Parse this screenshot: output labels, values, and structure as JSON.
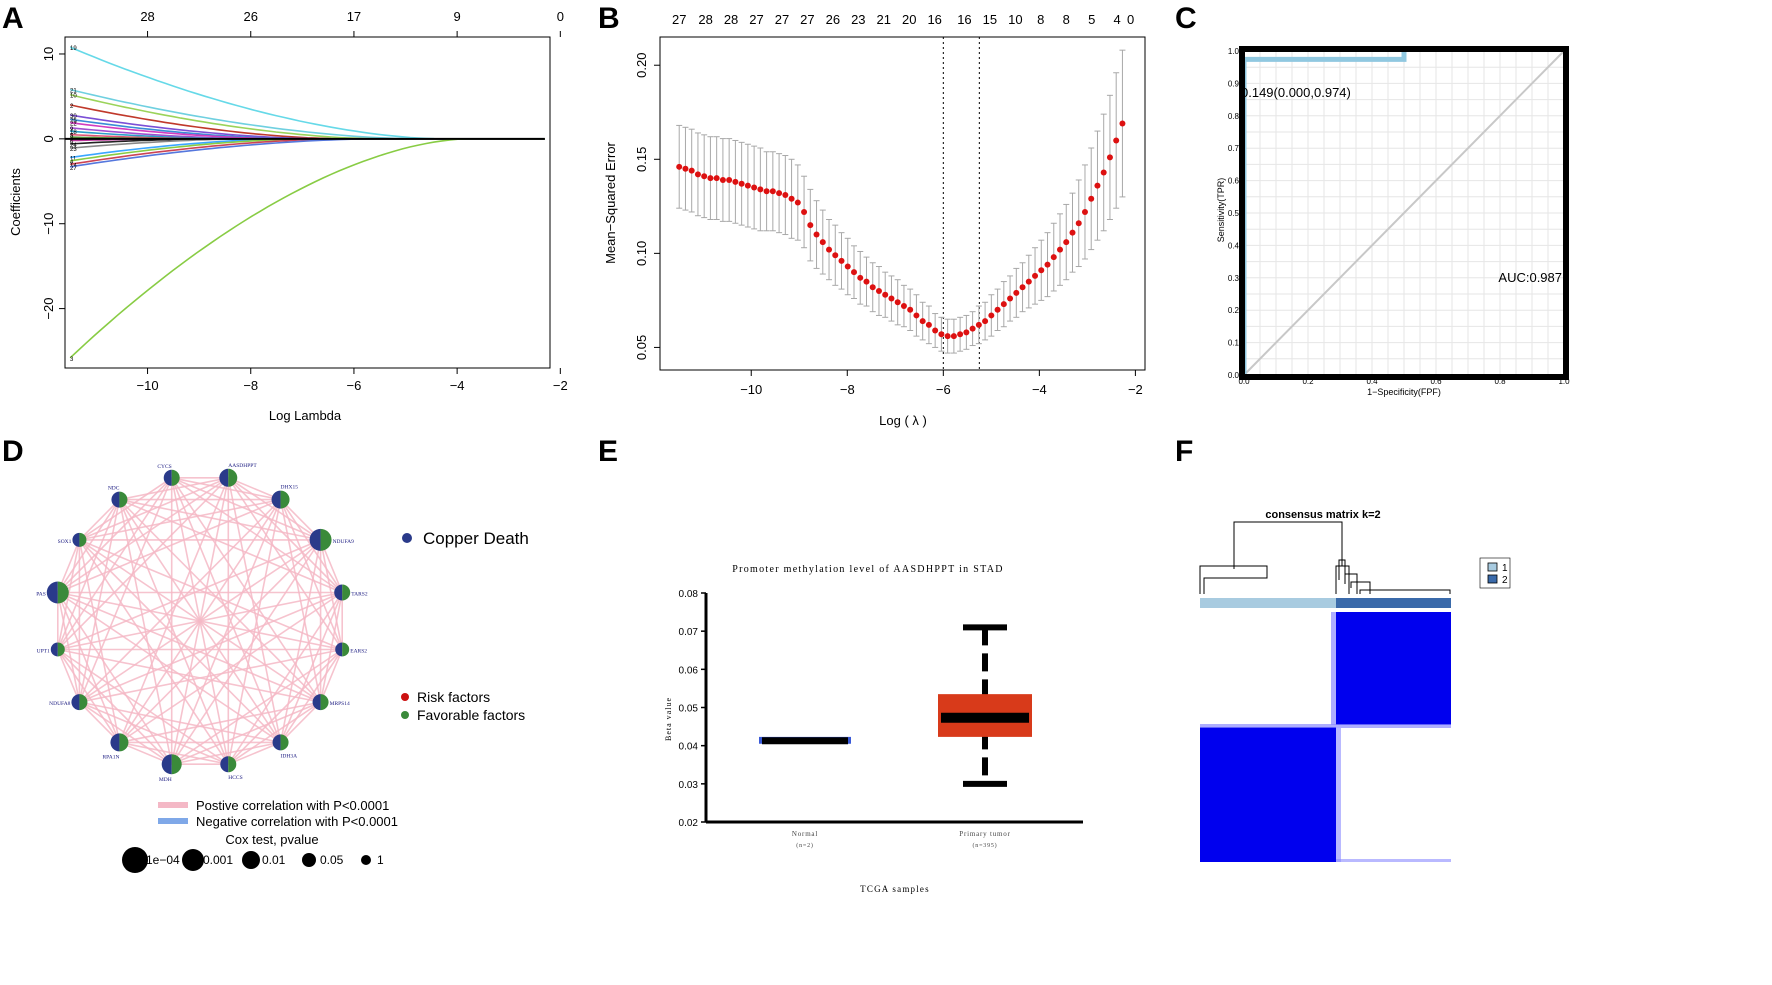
{
  "panel_labels": [
    "A",
    "B",
    "C",
    "D",
    "E",
    "F"
  ],
  "colors": {
    "lasso_lines": [
      "#66d9e8",
      "#6fd0e0",
      "#9bd35a",
      "#c0392b",
      "#7b4fd6",
      "#3a8cd6",
      "#d23cc0",
      "#a050d0",
      "#2aa0c8",
      "#e05575",
      "#5a9a3a",
      "#bb3399",
      "#222222",
      "#888888",
      "#3aa6ff",
      "#88cc44",
      "#cc4455",
      "#5577dd"
    ],
    "cv_point": "#dd1111",
    "cv_errorbar": "#a8a8a8",
    "roc_curve": "#90c8e0",
    "roc_border": "#000000",
    "copper_death": "#2a3a8a",
    "risk": "#cc1111",
    "favorable": "#3a8a3a",
    "edge_positive": "#f4b8c6",
    "edge_negative": "#7fa8e8",
    "box_normal": "#3a5ad8",
    "box_tumor": "#d83a1a",
    "consensus_blue": "#0000ee",
    "consensus_c1": "#a8cbe0",
    "consensus_c2": "#3a6aaa"
  },
  "chart_data": [
    {
      "id": "A",
      "type": "line",
      "title": "",
      "xlabel": "Log Lambda",
      "ylabel": "Coefficients",
      "xlim": [
        -11.6,
        -2.2
      ],
      "ylim": [
        -27,
        12
      ],
      "xticks": [
        -10,
        -8,
        -6,
        -4,
        -2
      ],
      "yticks": [
        -20,
        -10,
        0,
        10
      ],
      "top_axis": {
        "positions": [
          -10,
          -8,
          -6,
          -4,
          -2
        ],
        "labels": [
          "28",
          "26",
          "17",
          "9",
          "0"
        ]
      },
      "line_labels": [
        "19",
        "21",
        "10",
        "2",
        "30",
        "25",
        "22",
        "9",
        "18",
        "5",
        "8",
        "6",
        "24",
        "23",
        "11",
        "4",
        "14",
        "27",
        "3"
      ],
      "series": [
        {
          "name": "19",
          "start": 10.8,
          "end_x": -4.3
        },
        {
          "name": "21",
          "start": 5.8,
          "end_x": -4.8
        },
        {
          "name": "10",
          "start": 5.2,
          "end_x": -5.5
        },
        {
          "name": "2",
          "start": 4.0,
          "end_x": -6.2
        },
        {
          "name": "30",
          "start": 2.8,
          "end_x": -6.6
        },
        {
          "name": "25",
          "start": 2.3,
          "end_x": -7.0
        },
        {
          "name": "22",
          "start": 1.9,
          "end_x": -7.3
        },
        {
          "name": "9",
          "start": 1.3,
          "end_x": -7.8
        },
        {
          "name": "18",
          "start": 0.9,
          "end_x": -8.2
        },
        {
          "name": "5",
          "start": 0.5,
          "end_x": -8.6
        },
        {
          "name": "8",
          "start": 0.2,
          "end_x": -9.0
        },
        {
          "name": "6",
          "start": -0.2,
          "end_x": -9.0
        },
        {
          "name": "24",
          "start": -0.6,
          "end_x": -8.6
        },
        {
          "name": "23",
          "start": -1.1,
          "end_x": -8.0
        },
        {
          "name": "11",
          "start": -2.2,
          "end_x": -7.2
        },
        {
          "name": "4",
          "start": -2.6,
          "end_x": -6.8
        },
        {
          "name": "14",
          "start": -3.0,
          "end_x": -6.2
        },
        {
          "name": "27",
          "start": -3.3,
          "end_x": -5.6
        },
        {
          "name": "3",
          "start": -25.8,
          "end_x": -3.8
        }
      ]
    },
    {
      "id": "B",
      "type": "scatter",
      "title": "",
      "xlabel": "Log ( λ )",
      "ylabel": "Mean−Squared Error",
      "xlim": [
        -11.9,
        -1.8
      ],
      "ylim": [
        0.038,
        0.215
      ],
      "xticks": [
        -10,
        -8,
        -6,
        -4,
        -2
      ],
      "yticks": [
        0.05,
        0.1,
        0.15,
        0.2
      ],
      "top_axis": {
        "positions": [
          -11.5,
          -10.95,
          -10.42,
          -9.89,
          -9.36,
          -8.83,
          -8.3,
          -7.77,
          -7.24,
          -6.71,
          -6.18,
          -5.56,
          -5.03,
          -4.5,
          -3.97,
          -3.44,
          -2.91,
          -2.38
        ],
        "labels": [
          "27",
          "28",
          "28",
          "27",
          "27",
          "27",
          "26",
          "23",
          "21",
          "20",
          "16",
          "16",
          "15",
          "10",
          "8",
          "8",
          "5",
          "4"
        ]
      },
      "top_axis_last": {
        "position": -2.1,
        "label": "0"
      },
      "vlines": [
        -6.0,
        -5.25
      ],
      "x": [
        -11.5,
        -11.37,
        -11.24,
        -11.11,
        -10.98,
        -10.85,
        -10.72,
        -10.59,
        -10.46,
        -10.33,
        -10.2,
        -10.07,
        -9.94,
        -9.81,
        -9.68,
        -9.55,
        -9.42,
        -9.29,
        -9.16,
        -9.03,
        -8.9,
        -8.77,
        -8.64,
        -8.51,
        -8.38,
        -8.25,
        -8.12,
        -7.99,
        -7.86,
        -7.73,
        -7.6,
        -7.47,
        -7.34,
        -7.21,
        -7.08,
        -6.95,
        -6.82,
        -6.69,
        -6.56,
        -6.43,
        -6.3,
        -6.17,
        -6.04,
        -5.91,
        -5.78,
        -5.65,
        -5.52,
        -5.39,
        -5.26,
        -5.13,
        -5.0,
        -4.87,
        -4.74,
        -4.61,
        -4.48,
        -4.35,
        -4.22,
        -4.09,
        -3.96,
        -3.83,
        -3.7,
        -3.57,
        -3.44,
        -3.31,
        -3.18,
        -3.05,
        -2.92,
        -2.79,
        -2.66,
        -2.53,
        -2.4,
        -2.27
      ],
      "y": [
        0.146,
        0.145,
        0.144,
        0.142,
        0.141,
        0.14,
        0.14,
        0.139,
        0.139,
        0.138,
        0.137,
        0.136,
        0.135,
        0.134,
        0.133,
        0.133,
        0.132,
        0.131,
        0.129,
        0.127,
        0.122,
        0.115,
        0.11,
        0.106,
        0.102,
        0.099,
        0.096,
        0.093,
        0.09,
        0.087,
        0.085,
        0.082,
        0.08,
        0.078,
        0.076,
        0.074,
        0.072,
        0.07,
        0.067,
        0.064,
        0.062,
        0.059,
        0.057,
        0.056,
        0.056,
        0.057,
        0.058,
        0.06,
        0.062,
        0.064,
        0.067,
        0.07,
        0.073,
        0.076,
        0.079,
        0.082,
        0.085,
        0.088,
        0.091,
        0.094,
        0.098,
        0.102,
        0.106,
        0.111,
        0.116,
        0.122,
        0.129,
        0.136,
        0.143,
        0.151,
        0.16,
        0.169
      ],
      "err": [
        0.022,
        0.022,
        0.022,
        0.022,
        0.022,
        0.022,
        0.022,
        0.022,
        0.022,
        0.022,
        0.022,
        0.022,
        0.022,
        0.022,
        0.021,
        0.021,
        0.021,
        0.021,
        0.021,
        0.02,
        0.019,
        0.019,
        0.018,
        0.017,
        0.016,
        0.016,
        0.015,
        0.015,
        0.014,
        0.014,
        0.013,
        0.013,
        0.013,
        0.012,
        0.012,
        0.012,
        0.011,
        0.011,
        0.011,
        0.01,
        0.01,
        0.009,
        0.009,
        0.009,
        0.009,
        0.009,
        0.009,
        0.009,
        0.01,
        0.01,
        0.011,
        0.011,
        0.012,
        0.012,
        0.013,
        0.013,
        0.014,
        0.015,
        0.016,
        0.017,
        0.018,
        0.019,
        0.02,
        0.021,
        0.023,
        0.025,
        0.027,
        0.029,
        0.031,
        0.033,
        0.036,
        0.039
      ]
    },
    {
      "id": "C",
      "type": "line",
      "title": "",
      "xlabel": "1−Specificity(FPF)",
      "ylabel": "Sensitivity(TPR)",
      "xlim": [
        0,
        1
      ],
      "ylim": [
        0,
        1
      ],
      "xticks": [
        "0.0",
        "0.2",
        "0.4",
        "0.6",
        "0.8",
        "1.0"
      ],
      "yticks": [
        "0.0",
        "0.1",
        "0.2",
        "0.3",
        "0.4",
        "0.5",
        "0.6",
        "0.7",
        "0.8",
        "0.9",
        "1.0"
      ],
      "roc_x": [
        0.0,
        0.0,
        0.5,
        0.5
      ],
      "roc_y": [
        0.0,
        0.974,
        0.974,
        1.0
      ],
      "best_point": "0.149(0.000,0.974)",
      "auc_label": "AUC:0.987"
    },
    {
      "id": "E",
      "type": "bar",
      "title": "Promoter methylation level of AASDHPPT in STAD",
      "xlabel": "TCGA samples",
      "ylabel": "Beta value",
      "ylim": [
        0.02,
        0.08
      ],
      "yticks": [
        "0.02",
        "0.03",
        "0.04",
        "0.05",
        "0.06",
        "0.07",
        "0.08"
      ],
      "categories": [
        "Normal",
        "Primary tumor"
      ],
      "n_labels": [
        "(n=2)",
        "(n=395)"
      ],
      "boxes": [
        {
          "q1": 0.0405,
          "median": 0.0413,
          "q3": 0.0423,
          "min": 0.0405,
          "max": 0.0423
        },
        {
          "q1": 0.0423,
          "median": 0.0473,
          "q3": 0.0535,
          "min": 0.03,
          "max": 0.071
        }
      ]
    }
  ],
  "network": {
    "nodes": [
      "CYCS",
      "AASDHPPT",
      "DHX15",
      "NDUFA9",
      "TARS2",
      "EARS2",
      "MRPS14",
      "IDH3A",
      "HCCS",
      "MDH",
      "RPA1N",
      "NDUFA8",
      "UPT1",
      "PAS",
      "SOX1",
      "NDC"
    ],
    "legend": {
      "copper_death": "Copper Death",
      "risk": "Risk factors",
      "favorable": "Favorable factors",
      "positive": "Postive correlation with P<0.0001",
      "negative": "Negative correlation with P<0.0001",
      "size_title": "Cox test, pvalue",
      "sizes": [
        "1e−04",
        "0.001",
        "0.01",
        "0.05",
        "1"
      ]
    }
  },
  "consensus": {
    "title": "consensus matrix k=2",
    "legend": [
      "1",
      "2"
    ]
  }
}
